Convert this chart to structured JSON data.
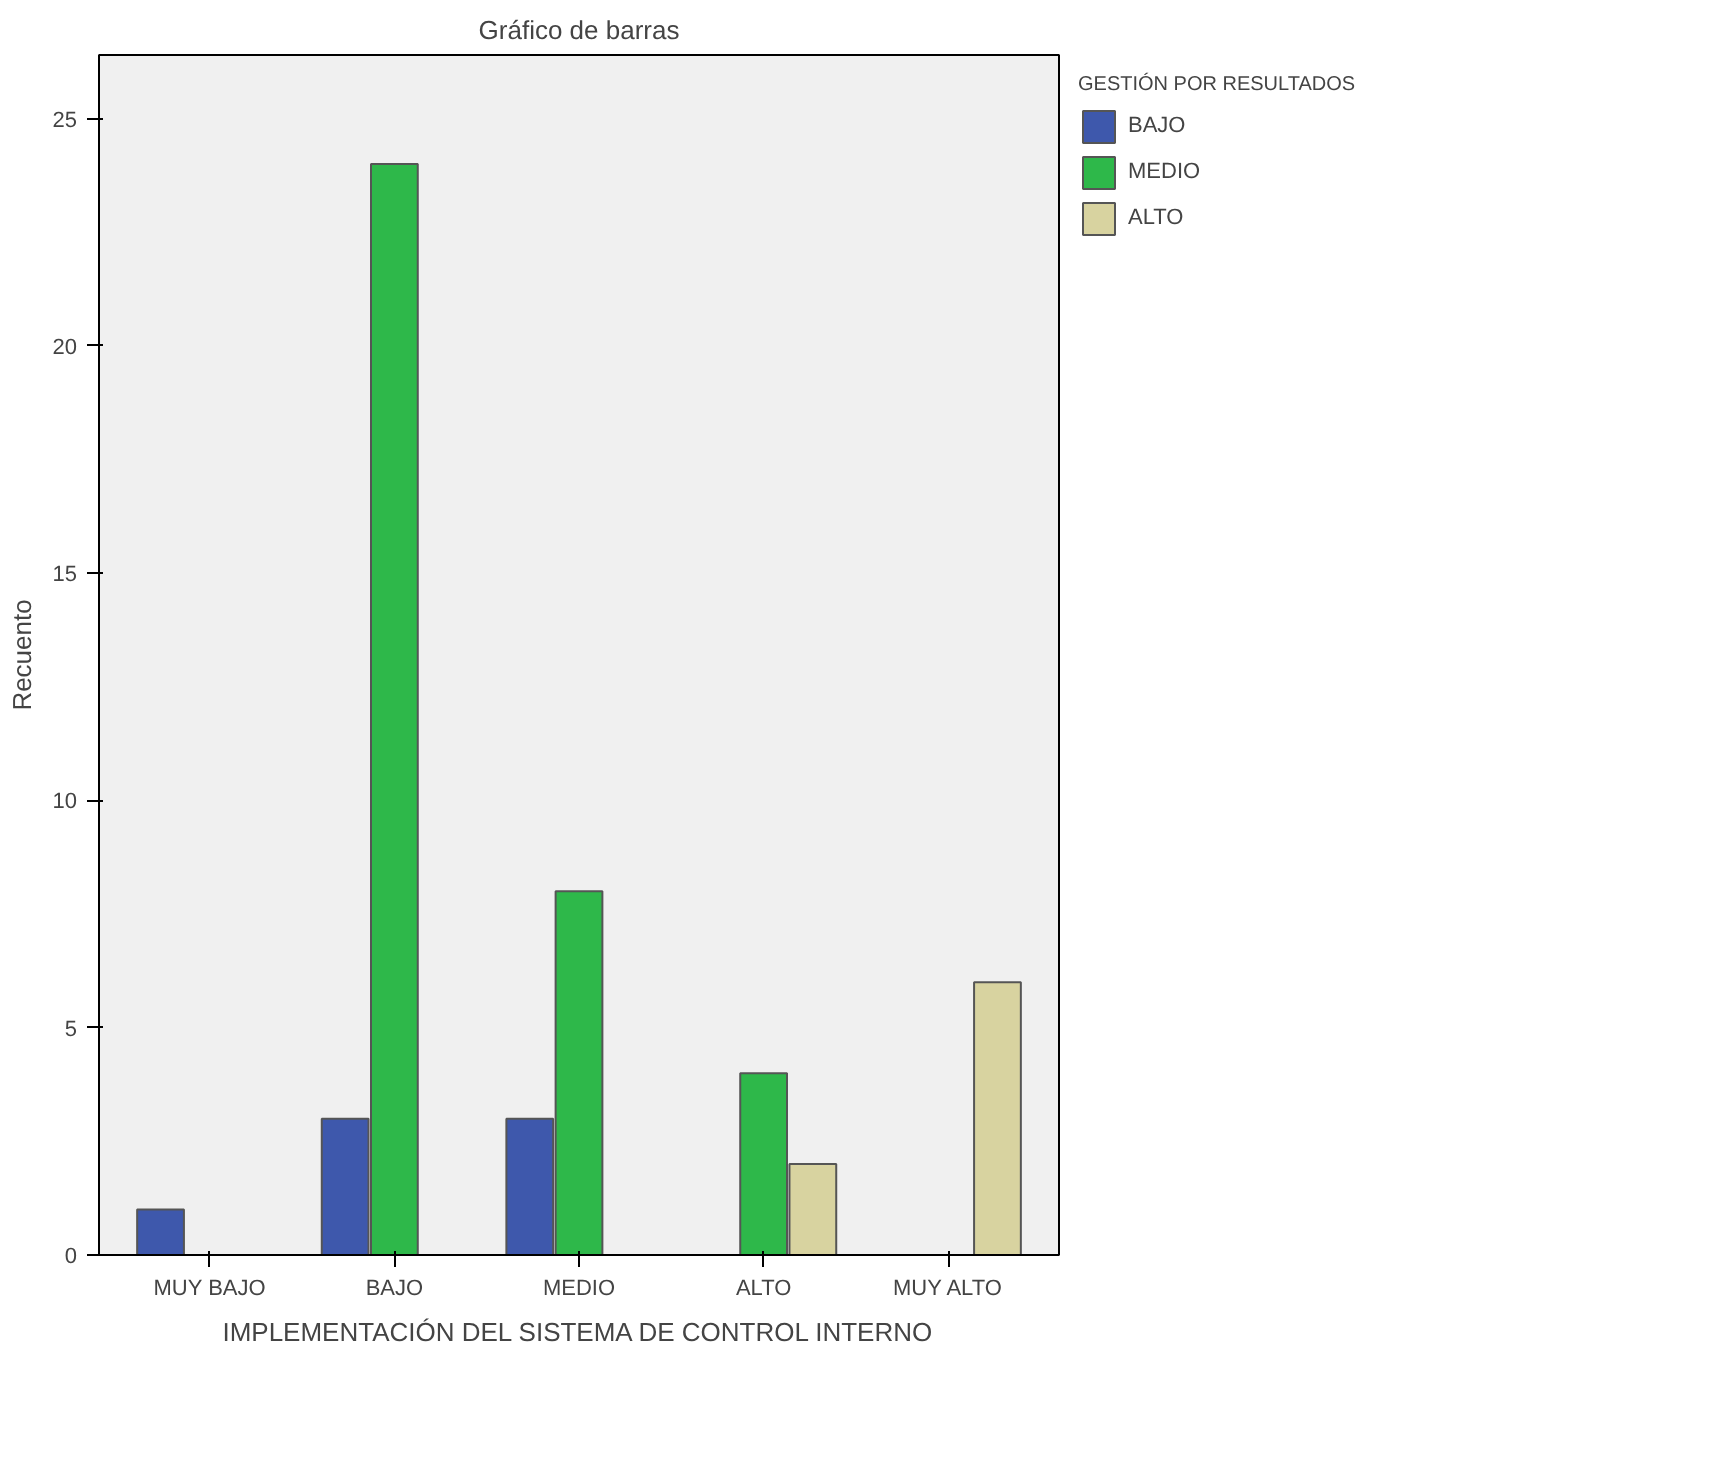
{
  "chart_data": {
    "type": "bar",
    "title": "Gráfico de barras",
    "xlabel": "IMPLEMENTACIÓN DEL SISTEMA DE CONTROL INTERNO",
    "ylabel": "Recuento",
    "legend_title": "GESTIÓN POR RESULTADOS",
    "categories": [
      "MUY BAJO",
      "BAJO",
      "MEDIO",
      "ALTO",
      "MUY ALTO"
    ],
    "series": [
      {
        "name": "BAJO",
        "color": "#3e58ac",
        "values": [
          1,
          3,
          3,
          null,
          null
        ]
      },
      {
        "name": "MEDIO",
        "color": "#2eb84a",
        "values": [
          null,
          24,
          8,
          4,
          null
        ]
      },
      {
        "name": "ALTO",
        "color": "#d8d3a0",
        "values": [
          null,
          null,
          null,
          2,
          6
        ]
      }
    ],
    "ylim": [
      0,
      26.4
    ],
    "yticks": [
      0,
      5,
      10,
      15,
      20,
      25
    ],
    "grid": false,
    "legend": "top right"
  }
}
